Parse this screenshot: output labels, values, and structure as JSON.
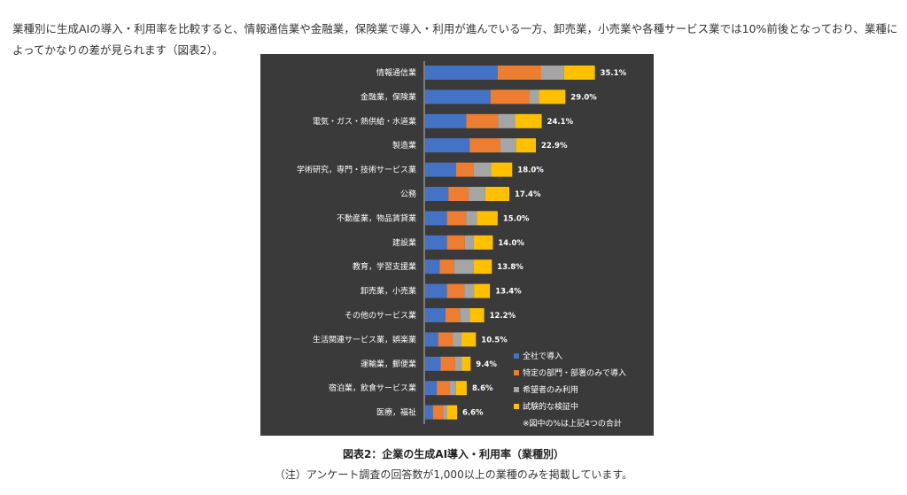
{
  "intro_text": "業種別に生成AIの導入・利用率を比較すると、情報通信業や金融業，保険業で導入・利用が進んでいる一方、卸売業，小売業や各種サービス業では10%前後となっており、業種によってかなりの差が見られます（図表2）。",
  "caption": "図表2：企業の生成AI導入・利用率（業種別）",
  "note": "（注）アンケート調査の回答数が1,000以上の業種のみを掲載しています。",
  "colors": {
    "background": "#3a3a3a",
    "series": [
      "#4472c4",
      "#ed7d31",
      "#a5a5a5",
      "#ffc000"
    ]
  },
  "chart_data": {
    "type": "bar",
    "orientation": "horizontal",
    "stacked": true,
    "categories": [
      "情報通信業",
      "金融業，保険業",
      "電気・ガス・熱供給・水道業",
      "製造業",
      "学術研究，専門・技術サービス業",
      "公務",
      "不動産業，物品賃貸業",
      "建設業",
      "教育，学習支援業",
      "卸売業，小売業",
      "その他のサービス業",
      "生活関連サービス業，娯楽業",
      "運輸業，郵便業",
      "宿泊業，飲食サービス業",
      "医療，福祉"
    ],
    "series": [
      {
        "name": "全社で導入",
        "values": [
          15.0,
          13.5,
          8.5,
          9.2,
          6.4,
          4.8,
          4.5,
          4.5,
          3.0,
          4.5,
          4.2,
          2.7,
          3.2,
          2.4,
          1.6
        ]
      },
      {
        "name": "特定の部門・部署のみで導入",
        "values": [
          9.0,
          8.0,
          6.6,
          6.3,
          3.6,
          4.2,
          4.0,
          3.7,
          3.0,
          3.6,
          3.0,
          3.0,
          3.0,
          2.6,
          2.1
        ]
      },
      {
        "name": "希望者のみ利用",
        "values": [
          4.7,
          2.0,
          3.5,
          3.3,
          3.6,
          3.4,
          2.2,
          1.8,
          4.0,
          2.0,
          2.0,
          1.8,
          1.4,
          1.4,
          0.8
        ]
      },
      {
        "name": "試験的な検証中",
        "values": [
          6.4,
          5.5,
          5.5,
          4.1,
          4.4,
          5.0,
          4.3,
          4.0,
          3.8,
          3.3,
          3.0,
          3.0,
          1.8,
          2.2,
          2.1
        ]
      }
    ],
    "totals": [
      "35.1%",
      "29.0%",
      "24.1%",
      "22.9%",
      "18.0%",
      "17.4%",
      "15.0%",
      "14.0%",
      "13.8%",
      "13.4%",
      "12.2%",
      "10.5%",
      "9.4%",
      "8.6%",
      "6.6%"
    ],
    "legend_position": "bottom-right",
    "legend_note": "※図中の%は上記4つの合計",
    "xlim": [
      0,
      40
    ],
    "grid": false
  }
}
